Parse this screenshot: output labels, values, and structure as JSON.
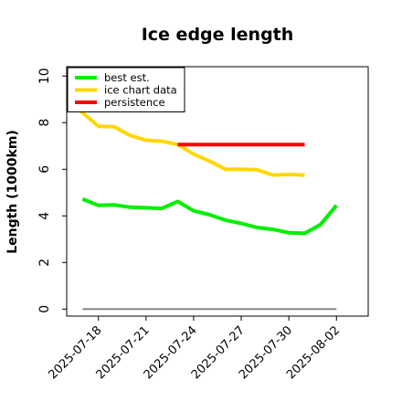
{
  "chart_data": {
    "type": "line",
    "title": "Ice edge length",
    "ylabel": "Length (1000km)",
    "xlabel": "",
    "ylim": [
      -0.3,
      10.4
    ],
    "yticks": [
      0,
      2,
      4,
      6,
      8,
      10
    ],
    "xlim": [
      "2025-07-16",
      "2025-08-04"
    ],
    "xticks": [
      "2025-07-18",
      "2025-07-21",
      "2025-07-24",
      "2025-07-27",
      "2025-07-30",
      "2025-08-02"
    ],
    "grid": false,
    "legend_position": "top-left",
    "series": [
      {
        "name": "best est.",
        "color": "#00ee00",
        "x": [
          "2025-07-17",
          "2025-07-18",
          "2025-07-19",
          "2025-07-20",
          "2025-07-21",
          "2025-07-22",
          "2025-07-23",
          "2025-07-24",
          "2025-07-25",
          "2025-07-26",
          "2025-07-27",
          "2025-07-28",
          "2025-07-29",
          "2025-07-30",
          "2025-07-31",
          "2025-08-01",
          "2025-08-02"
        ],
        "values": [
          4.72,
          4.45,
          4.47,
          4.37,
          4.35,
          4.32,
          4.62,
          4.22,
          4.05,
          3.82,
          3.68,
          3.5,
          3.42,
          3.28,
          3.25,
          3.63,
          4.45
        ]
      },
      {
        "name": "ice chart data",
        "color": "#ffd700",
        "x": [
          "2025-07-16",
          "2025-07-18",
          "2025-07-19",
          "2025-07-20",
          "2025-07-21",
          "2025-07-22",
          "2025-07-23",
          "2025-07-24",
          "2025-07-25",
          "2025-07-26",
          "2025-07-27",
          "2025-07-28",
          "2025-07-29",
          "2025-07-30",
          "2025-07-31"
        ],
        "values": [
          9.0,
          7.85,
          7.82,
          7.45,
          7.25,
          7.2,
          7.06,
          6.65,
          6.35,
          6.0,
          6.0,
          5.98,
          5.75,
          5.78,
          5.75
        ]
      },
      {
        "name": "persistence",
        "color": "#ff0000",
        "x": [
          "2025-07-23",
          "2025-07-31"
        ],
        "values": [
          7.06,
          7.06
        ]
      },
      {
        "name": "",
        "color": "#808080",
        "x": [
          "2025-07-17",
          "2025-08-02"
        ],
        "values": [
          0.0,
          0.0
        ]
      }
    ]
  }
}
